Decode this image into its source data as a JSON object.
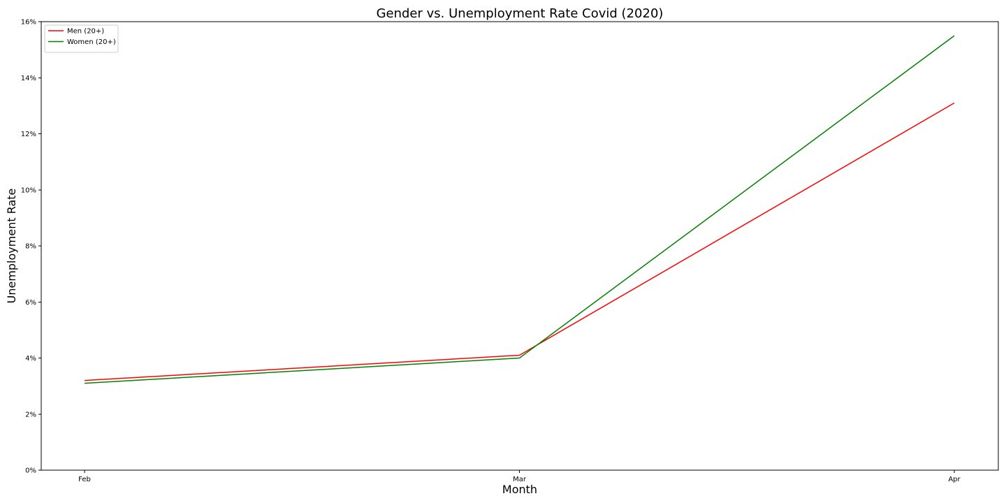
{
  "chart_data": {
    "type": "line",
    "title": "Gender vs. Unemployment Rate Covid (2020)",
    "xlabel": "Month",
    "ylabel": "Unemployment Rate",
    "categories": [
      "Feb",
      "Mar",
      "Apr"
    ],
    "series": [
      {
        "name": "Men (20+)",
        "color": "#ff0000",
        "values": [
          3.2,
          4.1,
          13.1
        ]
      },
      {
        "name": "Women (20+)",
        "color": "#008000",
        "values": [
          3.1,
          4.0,
          15.5
        ]
      }
    ],
    "ylim": [
      0,
      16
    ],
    "yticks": [
      0,
      2,
      4,
      6,
      8,
      10,
      12,
      14,
      16
    ],
    "ytick_labels": [
      "0%",
      "2%",
      "4%",
      "6%",
      "8%",
      "10%",
      "12%",
      "14%",
      "16%"
    ],
    "grid": false,
    "legend_position": "top-left"
  }
}
